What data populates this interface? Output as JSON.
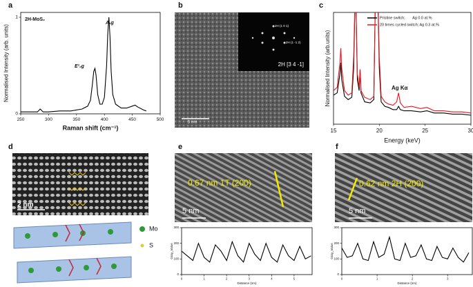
{
  "chart_data": [
    {
      "type": "line",
      "label": "a",
      "title": "2H-MoS₂",
      "annotations": [
        "E¹₂g",
        "A₁g"
      ],
      "xlabel": "Raman shift (cm⁻¹)",
      "ylabel": "Normalised Intensity (arb. units)",
      "x": [
        250,
        270,
        280,
        285,
        290,
        300,
        320,
        340,
        360,
        370,
        375,
        378,
        381,
        383,
        385,
        388,
        392,
        396,
        400,
        404,
        406,
        408,
        410,
        412,
        415,
        420,
        430,
        440,
        450,
        455,
        460,
        470,
        475
      ],
      "values": [
        0.02,
        0.02,
        0.02,
        0.05,
        0.02,
        0.02,
        0.03,
        0.03,
        0.05,
        0.08,
        0.14,
        0.28,
        0.44,
        0.47,
        0.4,
        0.2,
        0.1,
        0.1,
        0.17,
        0.5,
        0.82,
        1.0,
        0.8,
        0.45,
        0.2,
        0.1,
        0.06,
        0.06,
        0.08,
        0.09,
        0.07,
        0.04,
        0.03
      ],
      "color": "#000000",
      "xlim": [
        250,
        500
      ],
      "xticks": [
        250,
        300,
        350,
        400,
        450,
        500
      ],
      "ylim": [
        0,
        1.05
      ],
      "yticks": [
        0,
        1
      ]
    },
    {
      "type": "line",
      "label": "c",
      "annotations": [
        "Ag Kα"
      ],
      "xlabel": "Energy (keV)",
      "ylabel": "Normalised Intensity (arb.units)",
      "x": [
        15,
        15.4,
        15.7,
        15.8,
        15.9,
        16.2,
        16.6,
        17.0,
        17.2,
        17.4,
        17.6,
        17.8,
        17.9,
        18.0,
        18.4,
        19.0,
        19.4,
        19.6,
        19.8,
        20.0,
        20.2,
        20.6,
        21.0,
        21.5,
        21.9,
        22.1,
        22.3,
        22.7,
        23.5,
        24.5,
        25.2,
        26,
        27,
        28,
        29,
        30
      ],
      "series": [
        {
          "name": "Pristine switch;       Ag 0.0 at.%",
          "color": "#000000",
          "values": [
            0.26,
            0.28,
            0.45,
            0.55,
            0.4,
            0.25,
            0.22,
            0.24,
            0.5,
            1.3,
            0.4,
            0.3,
            0.49,
            0.28,
            0.2,
            0.19,
            0.22,
            1.3,
            1.3,
            0.5,
            0.2,
            0.16,
            0.15,
            0.13,
            0.13,
            0.16,
            0.13,
            0.12,
            0.12,
            0.11,
            0.12,
            0.1,
            0.1,
            0.09,
            0.09,
            0.08
          ]
        },
        {
          "name": "20 times cycled switch; Ag 0.3 at.%",
          "color": "#e8141b",
          "values": [
            0.3,
            0.33,
            0.55,
            0.68,
            0.5,
            0.3,
            0.26,
            0.28,
            0.6,
            1.3,
            0.45,
            0.33,
            0.49,
            0.3,
            0.24,
            0.22,
            0.25,
            1.3,
            1.3,
            0.6,
            0.25,
            0.2,
            0.18,
            0.17,
            0.2,
            0.28,
            0.19,
            0.15,
            0.16,
            0.14,
            0.15,
            0.12,
            0.12,
            0.11,
            0.11,
            0.1
          ]
        }
      ],
      "legend": "upper right",
      "xlim": [
        15,
        30
      ],
      "xticks": [
        15,
        20,
        25,
        30
      ],
      "ylim": [
        0,
        1
      ]
    },
    {
      "type": "line",
      "xlabel": "Distance (nm)",
      "ylabel": "Gray_Value",
      "x": [
        0,
        0.25,
        0.5,
        0.75,
        1,
        1.25,
        1.5,
        1.75,
        2,
        2.25,
        2.5,
        2.75,
        3,
        3.25,
        3.5,
        3.75,
        4,
        4.25,
        4.5,
        4.75,
        5,
        5.25,
        5.5,
        5.75
      ],
      "values": [
        150,
        120,
        90,
        200,
        110,
        80,
        190,
        150,
        90,
        210,
        120,
        80,
        200,
        130,
        90,
        200,
        110,
        80,
        190,
        120,
        90,
        180,
        100,
        120
      ],
      "color": "#000000",
      "xlim": [
        0,
        5.8
      ],
      "xticks": [
        0,
        1,
        2,
        3,
        4,
        5
      ],
      "ylim": [
        0,
        300
      ],
      "yticks": [
        0,
        100,
        200,
        300
      ]
    },
    {
      "type": "line",
      "xlabel": "Distance (nm)",
      "ylabel": "Gray_Value",
      "x": [
        0,
        0.15,
        0.3,
        0.45,
        0.6,
        0.75,
        0.9,
        1.05,
        1.2,
        1.35,
        1.5,
        1.65,
        1.8,
        1.95,
        2.1,
        2.25,
        2.4,
        2.55,
        2.7,
        2.85,
        3,
        3.15,
        3.3,
        3.45,
        3.6
      ],
      "values": [
        170,
        110,
        120,
        200,
        100,
        90,
        210,
        110,
        130,
        240,
        100,
        90,
        200,
        110,
        120,
        190,
        100,
        90,
        180,
        110,
        100,
        170,
        110,
        80,
        140
      ],
      "color": "#000000",
      "xlim": [
        0,
        3.7
      ],
      "xticks": [
        0,
        1,
        2,
        3
      ],
      "ylim": [
        0,
        300
      ],
      "yticks": [
        0,
        100,
        200,
        300
      ]
    }
  ],
  "images": [
    {
      "label": "b",
      "scale_bar": "5 nm",
      "inset": "2H [3 4 -1]",
      "fft_spots": [
        "2H (1 0 1)",
        "2H (1 -1 2)"
      ]
    },
    {
      "label": "d",
      "scale_bar": "2 nm",
      "legend": [
        "Mo",
        "S"
      ]
    },
    {
      "label": "e",
      "annotation": "0.67 nm 1T (200)",
      "scale_bar": "5 nm"
    },
    {
      "label": "f",
      "annotation": "0.62 nm 2H (200)",
      "scale_bar": "5 nm"
    }
  ]
}
